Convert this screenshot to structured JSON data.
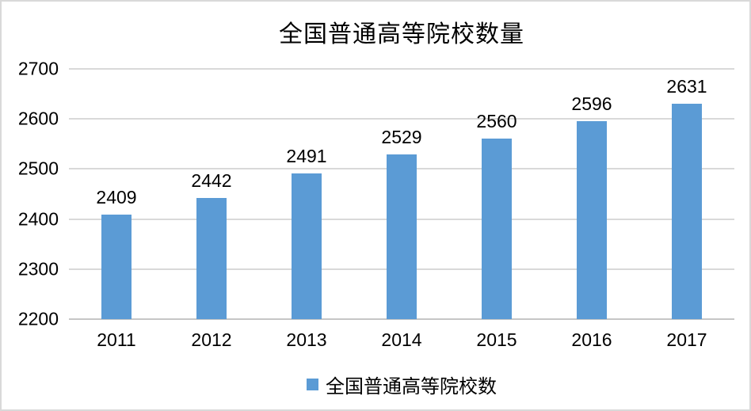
{
  "chart_data": {
    "type": "bar",
    "title": "全国普通高等院校数量",
    "categories": [
      "2011",
      "2012",
      "2013",
      "2014",
      "2015",
      "2016",
      "2017"
    ],
    "values": [
      2409,
      2442,
      2491,
      2529,
      2560,
      2596,
      2631
    ],
    "data_labels": [
      "2409",
      "2442",
      "2491",
      "2529",
      "2560",
      "2596",
      "2631"
    ],
    "xlabel": "",
    "ylabel": "",
    "ylim": [
      2200,
      2700
    ],
    "yticks": [
      2200,
      2300,
      2400,
      2500,
      2600,
      2700
    ],
    "grid": true,
    "legend": {
      "label": "全国普通高等院校数",
      "position": "bottom"
    }
  },
  "colors": {
    "bar": "#5b9bd5",
    "gridline": "#d9d9d9",
    "axis_line": "#c6c6c6",
    "text": "#000000",
    "frame_border": "#d9d9d9",
    "background": "#ffffff"
  }
}
